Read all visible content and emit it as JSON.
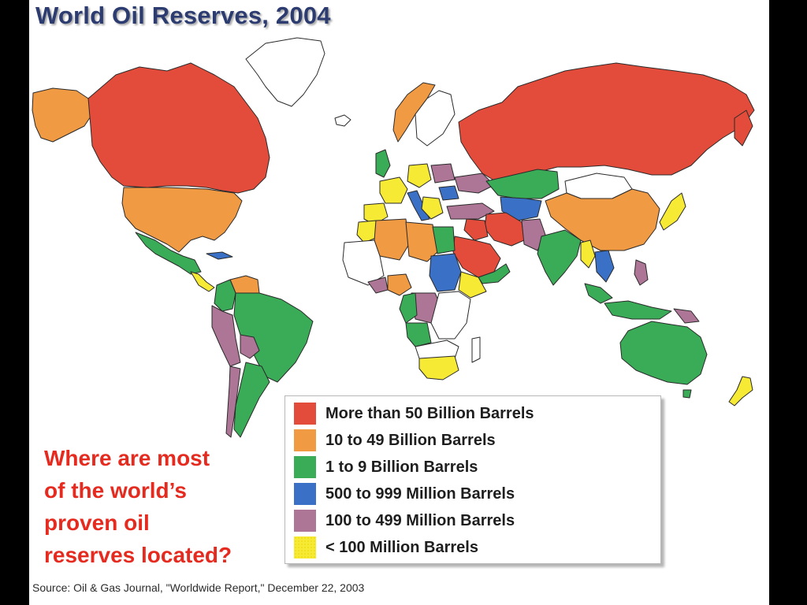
{
  "title": "World Oil Reserves, 2004",
  "question": "Where are most\nof the world’s\nproven oil\nreserves located?",
  "source": "Source: Oil & Gas Journal, \"Worldwide Report,\" December 22, 2003",
  "legend": [
    {
      "label": "More than 50 Billion Barrels",
      "color": "#e34c3a"
    },
    {
      "label": "10 to 49 Billion Barrels",
      "color": "#f09a43"
    },
    {
      "label": "1 to 9 Billion Barrels",
      "color": "#3aac57"
    },
    {
      "label": "500 to 999 Million Barrels",
      "color": "#3a70c6"
    },
    {
      "label": "100 to 499 Million Barrels",
      "color": "#ad7696"
    },
    {
      "label": "< 100 Million Barrels",
      "color": "#f6ea35"
    }
  ],
  "colors": {
    "ocean": "#ffffff",
    "no_data": "#ffffff",
    "title": "#2d3c70",
    "question": "#e52b1f"
  }
}
